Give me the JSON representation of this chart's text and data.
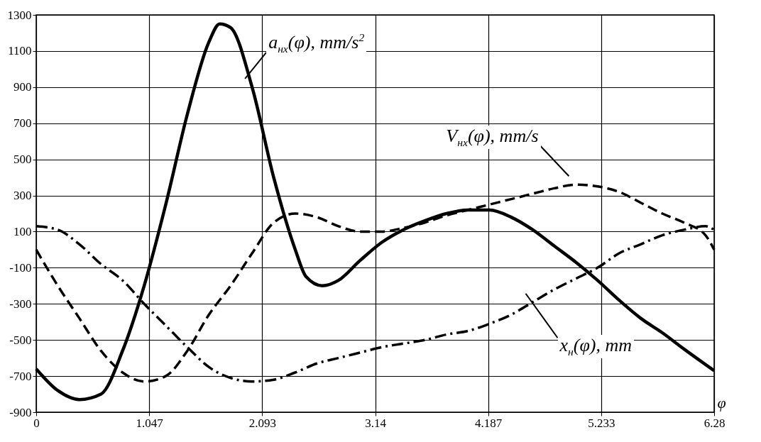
{
  "chart_data": {
    "type": "line",
    "xlabel": "φ",
    "xlim": [
      0,
      6.28
    ],
    "xticks": [
      0,
      1.047,
      2.093,
      3.14,
      4.187,
      5.233,
      6.28
    ],
    "ylim": [
      -900,
      1300
    ],
    "yticks": [
      -900,
      -700,
      -500,
      -300,
      -100,
      100,
      300,
      500,
      700,
      900,
      1100,
      1300
    ],
    "grid": true,
    "marker": "none",
    "series": [
      {
        "color": "#000000",
        "line_style": "solid",
        "x": [
          0,
          0.2,
          0.4,
          0.6,
          0.8,
          1.0,
          1.2,
          1.4,
          1.6,
          1.7,
          1.8,
          2.0,
          2.2,
          2.4,
          2.5,
          2.65,
          2.8,
          3.0,
          3.2,
          3.4,
          3.6,
          3.8,
          4.0,
          4.2,
          4.4,
          4.6,
          4.8,
          5.0,
          5.2,
          5.4,
          5.6,
          5.8,
          6.0,
          6.28
        ],
        "values": [
          -660,
          -780,
          -830,
          -800,
          -560,
          -200,
          250,
          750,
          1150,
          1250,
          1230,
          900,
          400,
          0,
          -150,
          -200,
          -170,
          -60,
          40,
          110,
          160,
          200,
          220,
          220,
          180,
          110,
          20,
          -70,
          -170,
          -280,
          -380,
          -460,
          -550,
          -670
        ]
      },
      {
        "color": "#000000",
        "line_style": "dashed",
        "x": [
          0,
          0.2,
          0.4,
          0.6,
          0.8,
          1.0,
          1.2,
          1.4,
          1.6,
          1.8,
          2.0,
          2.2,
          2.4,
          2.6,
          2.8,
          3.0,
          3.2,
          3.4,
          3.6,
          3.8,
          4.0,
          4.2,
          4.4,
          4.6,
          4.8,
          5.0,
          5.2,
          5.4,
          5.6,
          5.8,
          6.0,
          6.2,
          6.28
        ],
        "values": [
          0,
          -200,
          -380,
          -560,
          -680,
          -730,
          -700,
          -560,
          -360,
          -200,
          -20,
          150,
          200,
          180,
          130,
          100,
          100,
          120,
          150,
          190,
          220,
          250,
          280,
          310,
          340,
          360,
          350,
          320,
          260,
          200,
          150,
          80,
          0
        ]
      },
      {
        "color": "#000000",
        "line_style": "dashdot",
        "x": [
          0,
          0.2,
          0.4,
          0.6,
          0.8,
          1.0,
          1.2,
          1.4,
          1.6,
          1.8,
          2.0,
          2.2,
          2.4,
          2.6,
          2.8,
          3.0,
          3.2,
          3.4,
          3.6,
          3.8,
          4.0,
          4.2,
          4.4,
          4.6,
          4.8,
          5.0,
          5.2,
          5.4,
          5.6,
          5.8,
          6.0,
          6.2,
          6.28
        ],
        "values": [
          130,
          110,
          30,
          -80,
          -170,
          -300,
          -420,
          -540,
          -650,
          -710,
          -730,
          -720,
          -680,
          -630,
          -600,
          -570,
          -540,
          -520,
          -500,
          -470,
          -450,
          -410,
          -360,
          -290,
          -220,
          -160,
          -100,
          -20,
          30,
          80,
          110,
          130,
          110
        ]
      }
    ],
    "annotations": [
      {
        "text": "a$_{нх}$(φ), mm/s$^{2}$",
        "x": 2.0,
        "y": 900
      },
      {
        "text": "V$_{нх}$(φ), mm/s",
        "x": 5.0,
        "y": 360
      },
      {
        "text": "x$_{н}$(φ), mm",
        "x": 4.6,
        "y": -290
      }
    ]
  }
}
